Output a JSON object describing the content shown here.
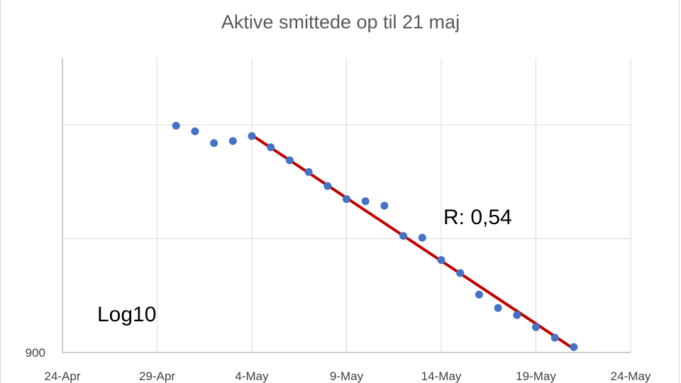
{
  "chart_data": {
    "type": "scatter",
    "title": "Aktive smittede op til 21 maj",
    "xlabel": "",
    "ylabel": "",
    "y_scale": "log10",
    "y_tick_labels": [
      {
        "value": 900,
        "label": "900"
      }
    ],
    "x_range": [
      "2020-04-24",
      "2020-05-24"
    ],
    "x_tick_labels": [
      {
        "date": "2020-04-24",
        "label": "24-Apr"
      },
      {
        "date": "2020-04-29",
        "label": "29-Apr"
      },
      {
        "date": "2020-05-04",
        "label": "4-May"
      },
      {
        "date": "2020-05-09",
        "label": "9-May"
      },
      {
        "date": "2020-05-14",
        "label": "14-May"
      },
      {
        "date": "2020-05-19",
        "label": "19-May"
      },
      {
        "date": "2020-05-24",
        "label": "24-May"
      }
    ],
    "grid": true,
    "legend": "none",
    "series": [
      {
        "marker_color": "#4472c4",
        "points": [
          {
            "date": "2020-04-30",
            "y": 3580
          },
          {
            "date": "2020-05-01",
            "y": 3460
          },
          {
            "date": "2020-05-02",
            "y": 3220
          },
          {
            "date": "2020-05-03",
            "y": 3260
          },
          {
            "date": "2020-05-04",
            "y": 3360
          },
          {
            "date": "2020-05-05",
            "y": 3140
          },
          {
            "date": "2020-05-06",
            "y": 2900
          },
          {
            "date": "2020-05-07",
            "y": 2700
          },
          {
            "date": "2020-05-08",
            "y": 2480
          },
          {
            "date": "2020-05-09",
            "y": 2290
          },
          {
            "date": "2020-05-10",
            "y": 2260
          },
          {
            "date": "2020-05-11",
            "y": 2200
          },
          {
            "date": "2020-05-12",
            "y": 1830
          },
          {
            "date": "2020-05-13",
            "y": 1810
          },
          {
            "date": "2020-05-14",
            "y": 1580
          },
          {
            "date": "2020-05-15",
            "y": 1460
          },
          {
            "date": "2020-05-16",
            "y": 1280
          },
          {
            "date": "2020-05-17",
            "y": 1180
          },
          {
            "date": "2020-05-18",
            "y": 1130
          },
          {
            "date": "2020-05-19",
            "y": 1050
          },
          {
            "date": "2020-05-20",
            "y": 985
          },
          {
            "date": "2020-05-21",
            "y": 930
          }
        ]
      }
    ],
    "trendline": {
      "color": "#c00000",
      "points": [
        {
          "date": "2020-05-04",
          "y": 3380
        },
        {
          "date": "2020-05-21",
          "y": 920
        }
      ]
    },
    "annotations": [
      {
        "text": "R: 0,54"
      },
      {
        "text": "Log10"
      }
    ]
  }
}
